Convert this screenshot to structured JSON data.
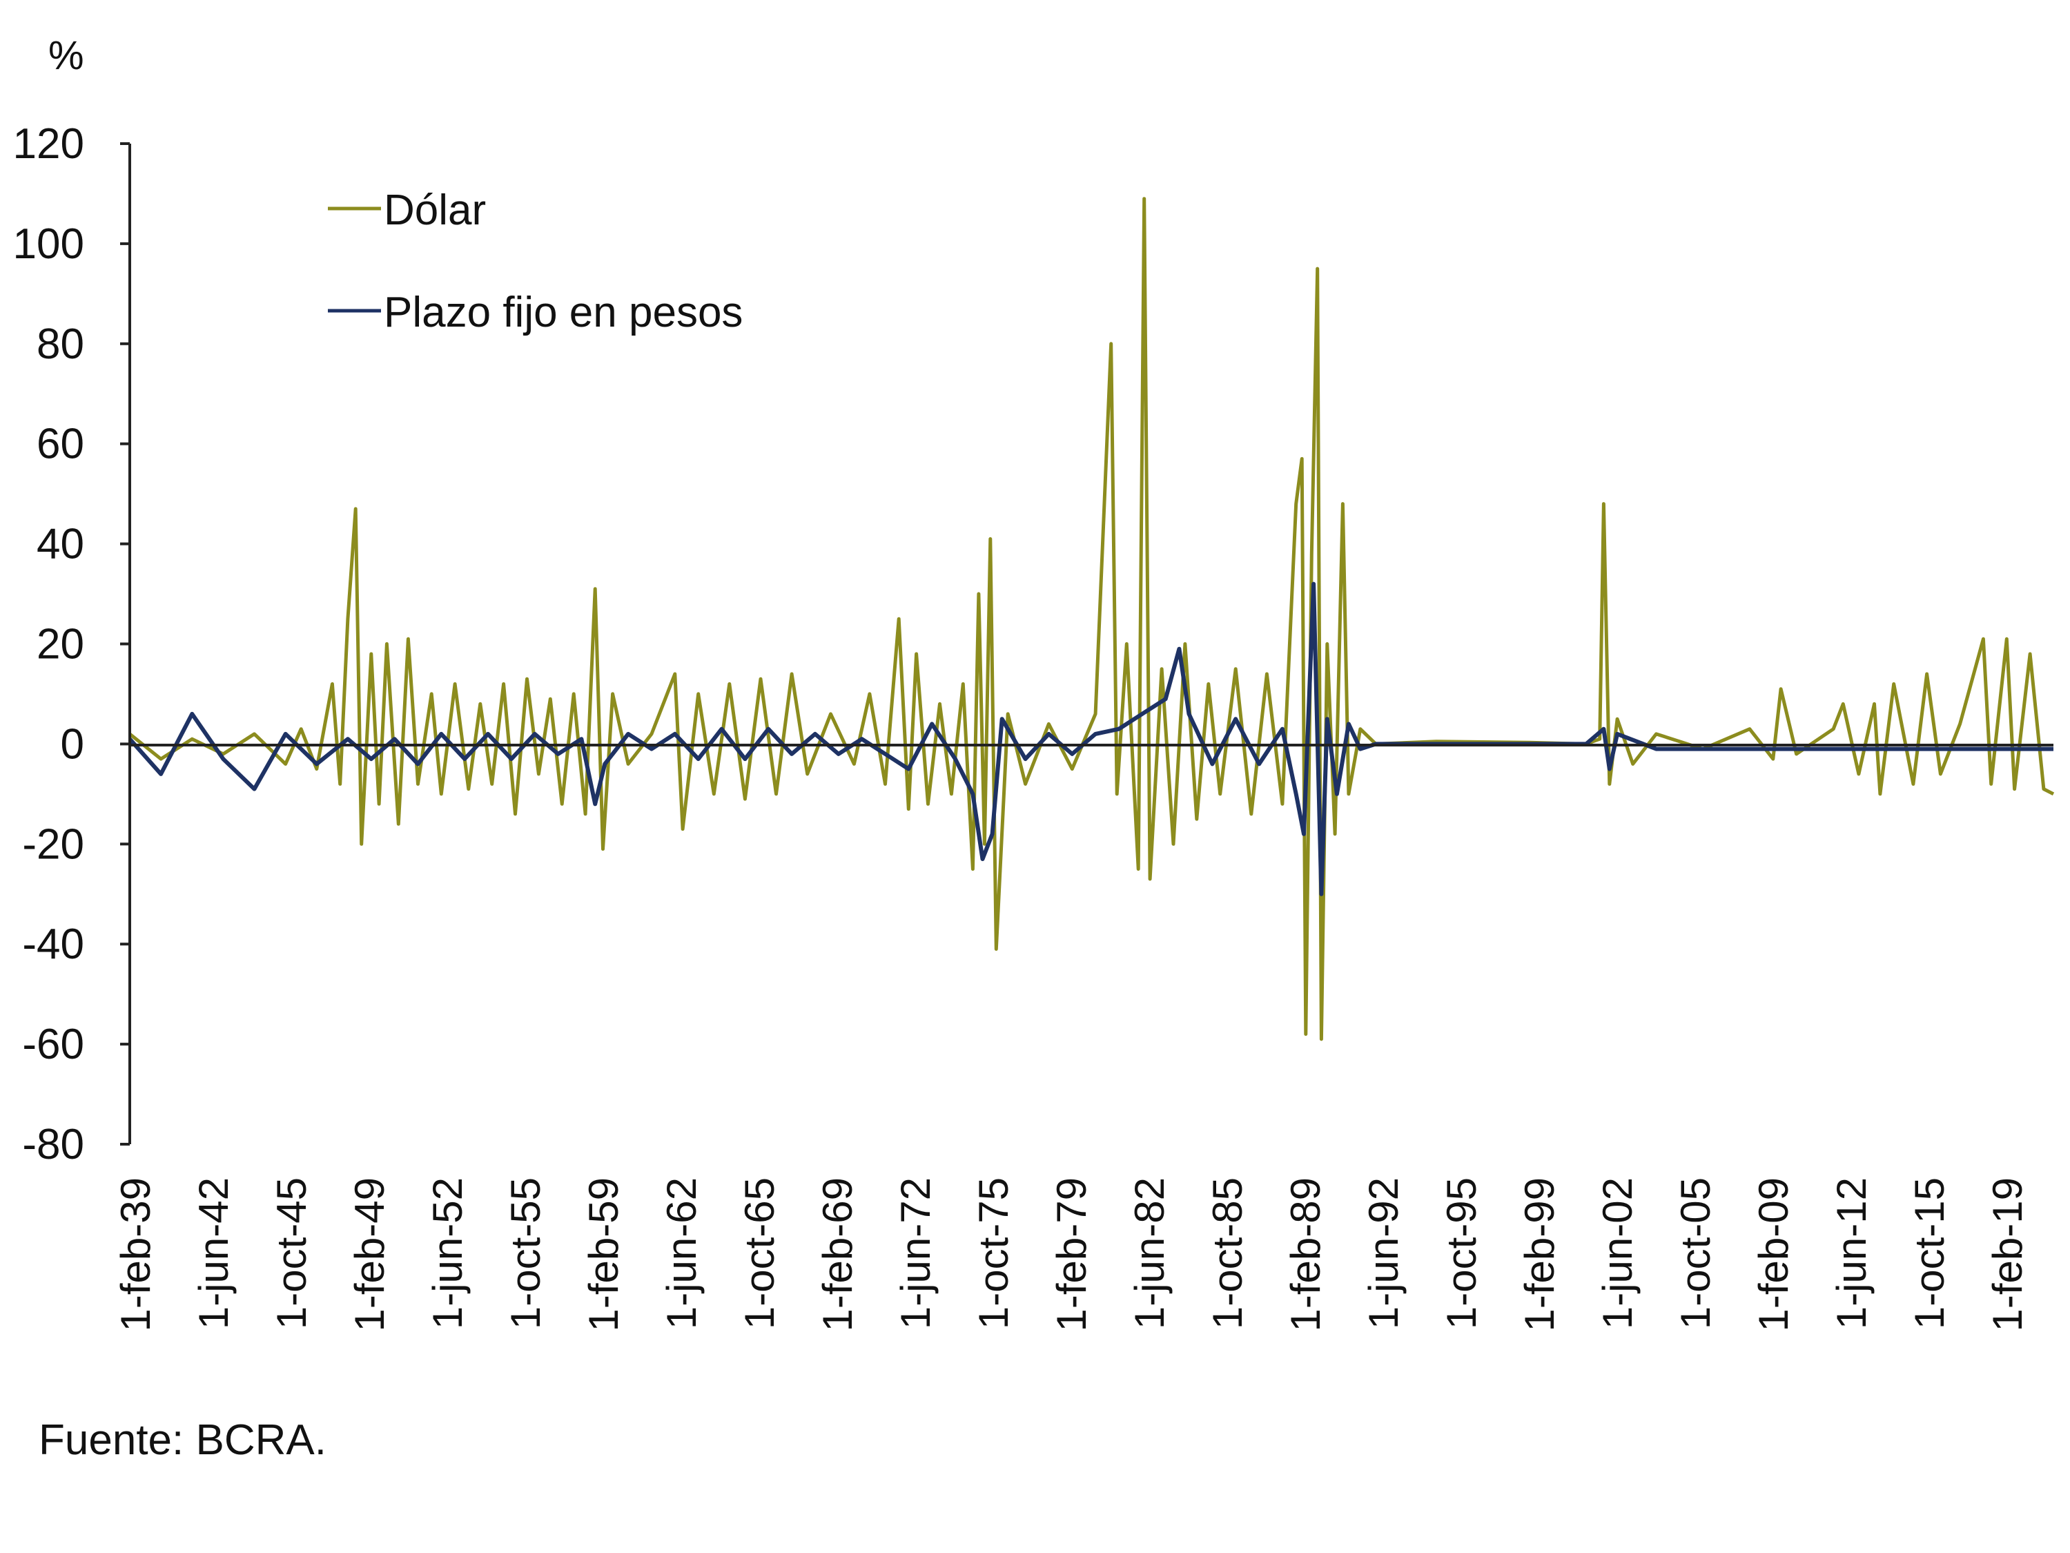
{
  "chart_data": {
    "type": "line",
    "ylabel": "%",
    "ylim": [
      -80,
      120
    ],
    "y_ticks": [
      "120",
      "100",
      "80",
      "60",
      "40",
      "20",
      "0",
      "-20",
      "-40",
      "-60",
      "-80"
    ],
    "x_ticks": [
      "1-feb-39",
      "1-jun-42",
      "1-oct-45",
      "1-feb-49",
      "1-jun-52",
      "1-oct-55",
      "1-feb-59",
      "1-jun-62",
      "1-oct-65",
      "1-feb-69",
      "1-jun-72",
      "1-oct-75",
      "1-feb-79",
      "1-jun-82",
      "1-oct-85",
      "1-feb-89",
      "1-jun-92",
      "1-oct-95",
      "1-feb-99",
      "1-jun-02",
      "1-oct-05",
      "1-feb-09",
      "1-jun-12",
      "1-oct-15",
      "1-feb-19"
    ],
    "x_start": "1939-02",
    "x_end": "2021-06",
    "grid": false,
    "legend_position": "top-left",
    "series": [
      {
        "name": "Dólar",
        "color": "#8c8c1e",
        "points": [
          [
            "1939-02",
            2
          ],
          [
            "1940-06",
            -3
          ],
          [
            "1941-10",
            1
          ],
          [
            "1943-02",
            -2
          ],
          [
            "1944-06",
            2
          ],
          [
            "1945-10",
            -4
          ],
          [
            "1946-06",
            3
          ],
          [
            "1947-02",
            -5
          ],
          [
            "1947-10",
            12
          ],
          [
            "1948-02",
            -8
          ],
          [
            "1948-06",
            25
          ],
          [
            "1948-10",
            47
          ],
          [
            "1949-01",
            -20
          ],
          [
            "1949-06",
            18
          ],
          [
            "1949-10",
            -12
          ],
          [
            "1950-02",
            20
          ],
          [
            "1950-08",
            -16
          ],
          [
            "1951-01",
            21
          ],
          [
            "1951-06",
            -8
          ],
          [
            "1952-01",
            10
          ],
          [
            "1952-06",
            -10
          ],
          [
            "1953-01",
            12
          ],
          [
            "1953-08",
            -9
          ],
          [
            "1954-02",
            8
          ],
          [
            "1954-08",
            -8
          ],
          [
            "1955-02",
            12
          ],
          [
            "1955-08",
            -14
          ],
          [
            "1956-02",
            13
          ],
          [
            "1956-08",
            -6
          ],
          [
            "1957-02",
            9
          ],
          [
            "1957-08",
            -12
          ],
          [
            "1958-02",
            10
          ],
          [
            "1958-08",
            -14
          ],
          [
            "1959-01",
            31
          ],
          [
            "1959-05",
            -21
          ],
          [
            "1959-10",
            10
          ],
          [
            "1960-06",
            -4
          ],
          [
            "1961-06",
            2
          ],
          [
            "1962-06",
            14
          ],
          [
            "1962-10",
            -17
          ],
          [
            "1963-06",
            10
          ],
          [
            "1964-02",
            -10
          ],
          [
            "1964-10",
            12
          ],
          [
            "1965-06",
            -11
          ],
          [
            "1966-02",
            13
          ],
          [
            "1966-10",
            -10
          ],
          [
            "1967-06",
            14
          ],
          [
            "1968-02",
            -6
          ],
          [
            "1969-02",
            6
          ],
          [
            "1970-02",
            -4
          ],
          [
            "1970-10",
            10
          ],
          [
            "1971-06",
            -8
          ],
          [
            "1972-01",
            25
          ],
          [
            "1972-06",
            -13
          ],
          [
            "1972-10",
            18
          ],
          [
            "1973-04",
            -12
          ],
          [
            "1973-10",
            8
          ],
          [
            "1974-04",
            -10
          ],
          [
            "1974-10",
            12
          ],
          [
            "1975-03",
            -25
          ],
          [
            "1975-06",
            30
          ],
          [
            "1975-09",
            -20
          ],
          [
            "1975-12",
            41
          ],
          [
            "1976-03",
            -41
          ],
          [
            "1976-09",
            6
          ],
          [
            "1977-06",
            -8
          ],
          [
            "1978-06",
            4
          ],
          [
            "1979-06",
            -5
          ],
          [
            "1980-06",
            6
          ],
          [
            "1981-02",
            80
          ],
          [
            "1981-05",
            -10
          ],
          [
            "1981-10",
            20
          ],
          [
            "1982-04",
            -25
          ],
          [
            "1982-07",
            109
          ],
          [
            "1982-10",
            -27
          ],
          [
            "1983-04",
            15
          ],
          [
            "1983-10",
            -20
          ],
          [
            "1984-04",
            20
          ],
          [
            "1984-10",
            -15
          ],
          [
            "1985-04",
            12
          ],
          [
            "1985-10",
            -10
          ],
          [
            "1986-06",
            15
          ],
          [
            "1987-02",
            -14
          ],
          [
            "1987-10",
            14
          ],
          [
            "1988-06",
            -12
          ],
          [
            "1989-01",
            48
          ],
          [
            "1989-04",
            57
          ],
          [
            "1989-06",
            -58
          ],
          [
            "1989-09",
            38
          ],
          [
            "1989-12",
            95
          ],
          [
            "1990-02",
            -59
          ],
          [
            "1990-05",
            20
          ],
          [
            "1990-09",
            -18
          ],
          [
            "1991-01",
            48
          ],
          [
            "1991-04",
            -10
          ],
          [
            "1991-10",
            3
          ],
          [
            "1992-06",
            0
          ],
          [
            "1995-01",
            0.5
          ],
          [
            "1999-01",
            0.3
          ],
          [
            "2001-06",
            0
          ],
          [
            "2002-01",
            1
          ],
          [
            "2002-03",
            48
          ],
          [
            "2002-06",
            -8
          ],
          [
            "2002-10",
            5
          ],
          [
            "2003-06",
            -4
          ],
          [
            "2004-06",
            2
          ],
          [
            "2006-06",
            -1
          ],
          [
            "2008-06",
            3
          ],
          [
            "2009-06",
            -3
          ],
          [
            "2009-10",
            11
          ],
          [
            "2010-06",
            -2
          ],
          [
            "2012-01",
            3
          ],
          [
            "2012-06",
            8
          ],
          [
            "2013-02",
            -6
          ],
          [
            "2013-10",
            8
          ],
          [
            "2014-01",
            -10
          ],
          [
            "2014-08",
            12
          ],
          [
            "2015-06",
            -8
          ],
          [
            "2016-01",
            14
          ],
          [
            "2016-08",
            -6
          ],
          [
            "2017-06",
            4
          ],
          [
            "2018-06",
            21
          ],
          [
            "2018-10",
            -8
          ],
          [
            "2019-06",
            21
          ],
          [
            "2019-10",
            -9
          ],
          [
            "2020-06",
            18
          ],
          [
            "2021-01",
            -9
          ],
          [
            "2021-06",
            -10
          ]
        ]
      },
      {
        "name": "Plazo fijo en pesos",
        "color": "#1e3264",
        "points": [
          [
            "1939-02",
            1
          ],
          [
            "1940-06",
            -6
          ],
          [
            "1941-10",
            6
          ],
          [
            "1943-02",
            -3
          ],
          [
            "1944-06",
            -9
          ],
          [
            "1945-10",
            2
          ],
          [
            "1947-02",
            -4
          ],
          [
            "1948-06",
            1
          ],
          [
            "1949-06",
            -3
          ],
          [
            "1950-06",
            1
          ],
          [
            "1951-06",
            -4
          ],
          [
            "1952-06",
            2
          ],
          [
            "1953-06",
            -3
          ],
          [
            "1954-06",
            2
          ],
          [
            "1955-06",
            -3
          ],
          [
            "1956-06",
            2
          ],
          [
            "1957-06",
            -2
          ],
          [
            "1958-06",
            1
          ],
          [
            "1959-01",
            -12
          ],
          [
            "1959-06",
            -4
          ],
          [
            "1960-06",
            2
          ],
          [
            "1961-06",
            -1
          ],
          [
            "1962-06",
            2
          ],
          [
            "1963-06",
            -3
          ],
          [
            "1964-06",
            3
          ],
          [
            "1965-06",
            -3
          ],
          [
            "1966-06",
            3
          ],
          [
            "1967-06",
            -2
          ],
          [
            "1968-06",
            2
          ],
          [
            "1969-06",
            -2
          ],
          [
            "1970-06",
            1
          ],
          [
            "1971-06",
            -2
          ],
          [
            "1972-06",
            -5
          ],
          [
            "1973-06",
            4
          ],
          [
            "1974-06",
            -3
          ],
          [
            "1975-03",
            -10
          ],
          [
            "1975-08",
            -23
          ],
          [
            "1976-01",
            -18
          ],
          [
            "1976-06",
            5
          ],
          [
            "1977-06",
            -3
          ],
          [
            "1978-06",
            2
          ],
          [
            "1979-06",
            -2
          ],
          [
            "1980-06",
            2
          ],
          [
            "1981-06",
            3
          ],
          [
            "1982-06",
            6
          ],
          [
            "1983-06",
            9
          ],
          [
            "1984-01",
            19
          ],
          [
            "1984-06",
            6
          ],
          [
            "1985-06",
            -4
          ],
          [
            "1986-06",
            5
          ],
          [
            "1987-06",
            -4
          ],
          [
            "1988-06",
            3
          ],
          [
            "1989-01",
            -10
          ],
          [
            "1989-05",
            -18
          ],
          [
            "1989-10",
            32
          ],
          [
            "1990-02",
            -30
          ],
          [
            "1990-05",
            5
          ],
          [
            "1990-10",
            -10
          ],
          [
            "1991-04",
            4
          ],
          [
            "1991-10",
            -1
          ],
          [
            "1992-06",
            0
          ],
          [
            "2001-06",
            0
          ],
          [
            "2002-03",
            3
          ],
          [
            "2002-06",
            -5
          ],
          [
            "2002-10",
            2
          ],
          [
            "2004-06",
            -1
          ],
          [
            "2008-06",
            -1
          ],
          [
            "2012-06",
            -1
          ],
          [
            "2016-06",
            -1
          ],
          [
            "2021-06",
            -1
          ]
        ]
      }
    ]
  },
  "source_note": "Fuente: BCRA."
}
